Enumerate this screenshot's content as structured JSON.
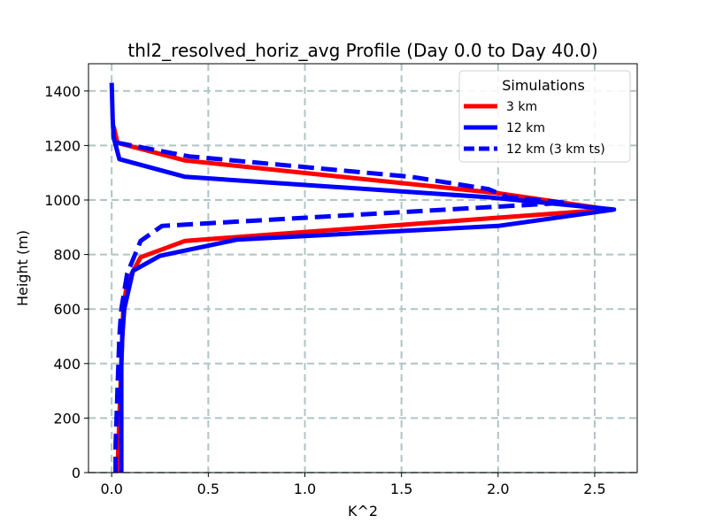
{
  "chart_data": {
    "type": "line",
    "title": "thl2_resolved_horiz_avg Profile (Day 0.0 to Day 40.0)",
    "xlabel": "K^2",
    "ylabel": "Height (m)",
    "xlim": [
      -0.12,
      2.72
    ],
    "ylim": [
      0,
      1500
    ],
    "xticks": [
      0.0,
      0.5,
      1.0,
      1.5,
      2.0,
      2.5
    ],
    "xtick_labels": [
      "0.0",
      "0.5",
      "1.0",
      "1.5",
      "2.0",
      "2.5"
    ],
    "yticks": [
      0,
      200,
      400,
      600,
      800,
      1000,
      1200,
      1400
    ],
    "ytick_labels": [
      "0",
      "200",
      "400",
      "600",
      "800",
      "1000",
      "1200",
      "1400"
    ],
    "grid": true,
    "legend": {
      "title": "Simulations",
      "placement": "upper right"
    },
    "series": [
      {
        "name": "3 km",
        "color": "#ff0000",
        "style": "solid",
        "x": [
          0.03,
          0.035,
          0.04,
          0.045,
          0.05,
          0.055,
          0.06,
          0.08,
          0.15,
          0.38,
          2.0,
          2.58,
          2.0,
          0.38,
          0.03,
          0.01
        ],
        "y": [
          0,
          100,
          200,
          300,
          400,
          500,
          600,
          700,
          790,
          850,
          935,
          965,
          1025,
          1145,
          1210,
          1270
        ]
      },
      {
        "name": "12 km",
        "color": "#0000ff",
        "style": "solid",
        "x": [
          0.05,
          0.05,
          0.05,
          0.05,
          0.05,
          0.055,
          0.065,
          0.11,
          0.25,
          0.65,
          2.0,
          2.6,
          1.95,
          0.38,
          0.04,
          0.01,
          0.005,
          0.0
        ],
        "y": [
          0,
          100,
          200,
          300,
          400,
          500,
          600,
          740,
          795,
          855,
          905,
          965,
          1010,
          1085,
          1150,
          1230,
          1300,
          1430
        ]
      },
      {
        "name": "12 km (3 km ts)",
        "color": "#0000ff",
        "style": "dashed",
        "x": [
          0.02,
          0.02,
          0.025,
          0.03,
          0.035,
          0.04,
          0.05,
          0.08,
          0.15,
          0.26,
          2.35,
          2.05,
          1.95,
          1.55,
          0.4,
          0.03,
          0.01
        ],
        "y": [
          0,
          100,
          200,
          300,
          400,
          500,
          600,
          730,
          850,
          905,
          990,
          1010,
          1040,
          1085,
          1160,
          1210,
          1230
        ]
      }
    ]
  }
}
